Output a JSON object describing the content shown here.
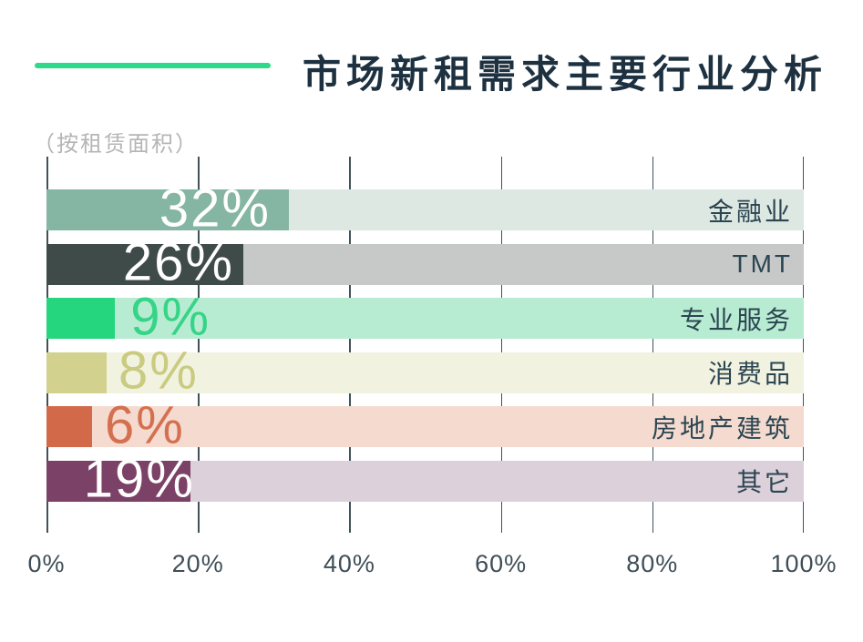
{
  "title": "市场新租需求主要行业分析",
  "subtitle": "（按租赁面积）",
  "accent_color": "#2fd98a",
  "chart_data": {
    "type": "bar",
    "orientation": "horizontal",
    "title": "市场新租需求主要行业分析",
    "subtitle": "（按租赁面积）",
    "categories": [
      "金融业",
      "TMT",
      "专业服务",
      "消费品",
      "房地产建筑",
      "其它"
    ],
    "values": [
      32,
      26,
      9,
      8,
      6,
      19
    ],
    "value_labels": [
      "32%",
      "26%",
      "9%",
      "8%",
      "6%",
      "19%"
    ],
    "xlim": [
      0,
      100
    ],
    "x_ticks": [
      "0%",
      "20%",
      "40%",
      "60%",
      "80%",
      "100%"
    ],
    "grid": true,
    "bar_colors": [
      "#85b5a3",
      "#3f4b49",
      "#25d67e",
      "#d2d28e",
      "#d26a49",
      "#7c4167"
    ],
    "track_colors": [
      "#dde8e3",
      "#c6c9c8",
      "#b7ecd3",
      "#f2f2e0",
      "#f4dacf",
      "#dcd0da"
    ],
    "value_label_colors": [
      "#ffffff",
      "#ffffff",
      "#35d486",
      "#c9cb7f",
      "#d4704f",
      "#ffffff"
    ],
    "category_label_color": "#2b4551"
  }
}
